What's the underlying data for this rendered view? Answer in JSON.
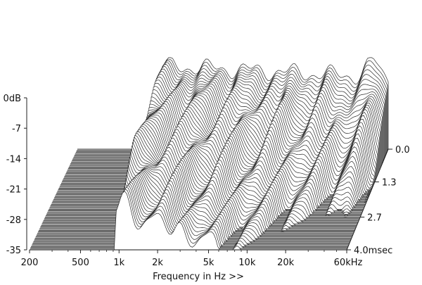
{
  "chart_data": {
    "type": "waterfall",
    "y_axis": {
      "unit": "dB",
      "ticks": [
        "0dB",
        "-7",
        "-14",
        "-21",
        "-28",
        "-35"
      ],
      "values": [
        0,
        -7,
        -14,
        -21,
        -28,
        -35
      ],
      "range": [
        -35,
        0
      ]
    },
    "x_axis": {
      "label": "Frequency in Hz >>",
      "scale": "log",
      "ticks": [
        "200",
        "500",
        "1k",
        "2k",
        "5k",
        "10k",
        "20k",
        "60kHz"
      ],
      "values": [
        200,
        500,
        1000,
        2000,
        5000,
        10000,
        20000,
        60000
      ],
      "range": [
        200,
        60000
      ]
    },
    "time_axis": {
      "unit": "msec",
      "ticks": [
        "0.0",
        "1.3",
        "2.7",
        "4.0msec"
      ],
      "values": [
        0.0,
        1.3,
        2.7,
        4.0
      ],
      "range": [
        0,
        4.0
      ]
    },
    "grid": false
  }
}
